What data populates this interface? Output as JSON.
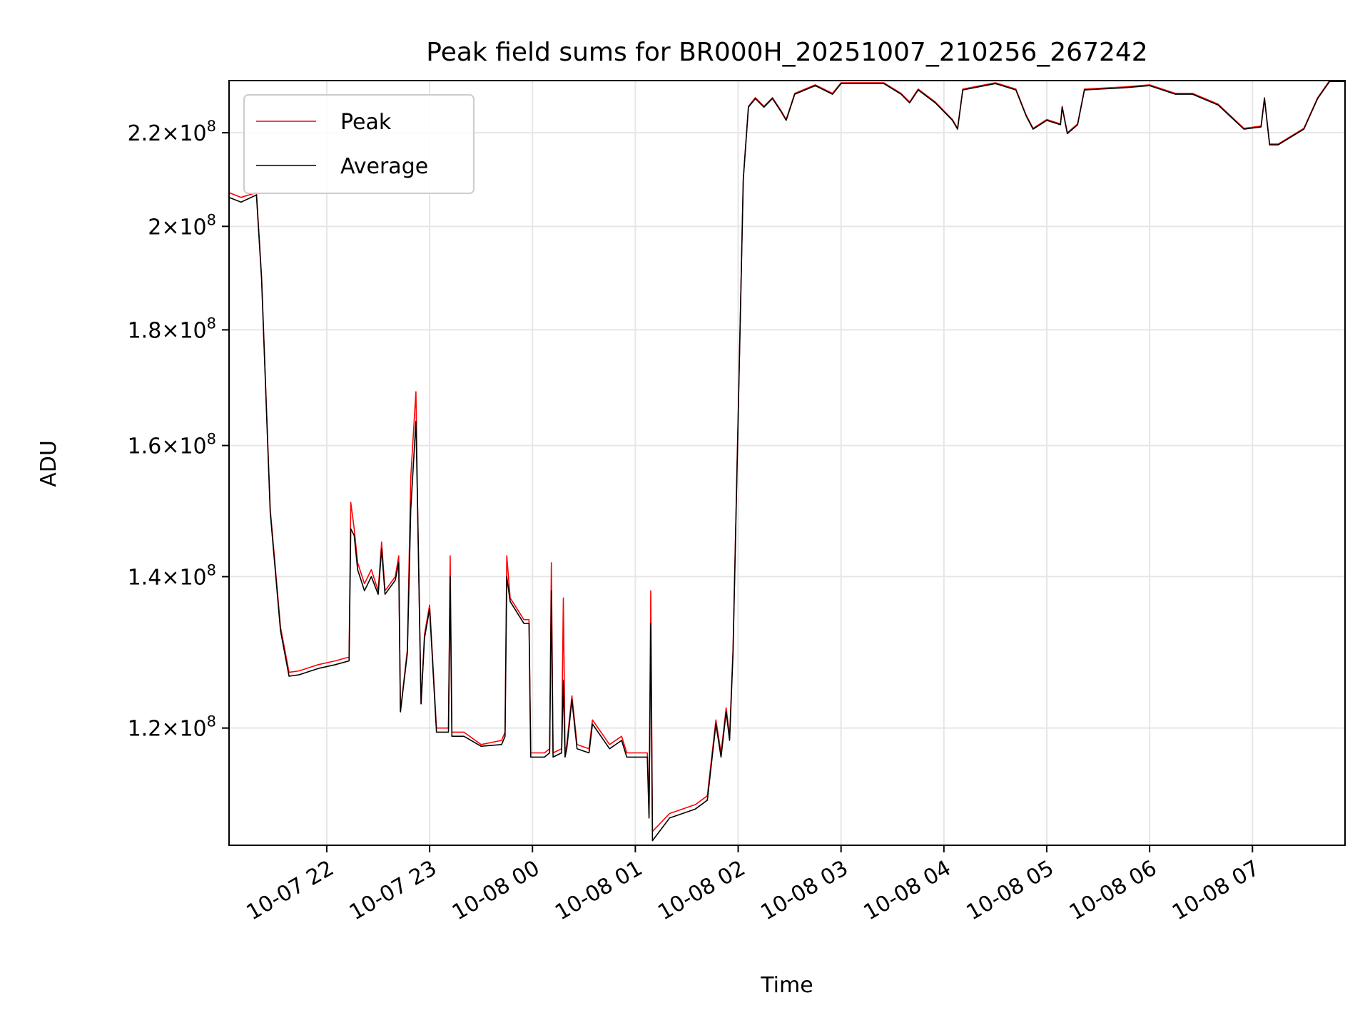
{
  "chart_data": {
    "type": "line",
    "title": "Peak field sums for BR000H_20251007_210256_267242",
    "xlabel": "Time",
    "ylabel": "ADU",
    "yscale": "log",
    "grid": true,
    "legend_position": "upper-left",
    "xlim": [
      "2025-10-07 21:03",
      "2025-10-08 07:54"
    ],
    "ylim": [
      106500000,
      232000000
    ],
    "x_ticks": [
      {
        "value": "2025-10-07 22:00",
        "label": "10-07 22"
      },
      {
        "value": "2025-10-07 23:00",
        "label": "10-07 23"
      },
      {
        "value": "2025-10-08 00:00",
        "label": "10-08 00"
      },
      {
        "value": "2025-10-08 01:00",
        "label": "10-08 01"
      },
      {
        "value": "2025-10-08 02:00",
        "label": "10-08 02"
      },
      {
        "value": "2025-10-08 03:00",
        "label": "10-08 03"
      },
      {
        "value": "2025-10-08 04:00",
        "label": "10-08 04"
      },
      {
        "value": "2025-10-08 05:00",
        "label": "10-08 05"
      },
      {
        "value": "2025-10-08 06:00",
        "label": "10-08 06"
      },
      {
        "value": "2025-10-08 07:00",
        "label": "10-08 07"
      }
    ],
    "y_ticks": [
      {
        "value": 120000000,
        "mantissa": "1.2",
        "exponent": "8"
      },
      {
        "value": 140000000,
        "mantissa": "1.4",
        "exponent": "8"
      },
      {
        "value": 160000000,
        "mantissa": "1.6",
        "exponent": "8"
      },
      {
        "value": 180000000,
        "mantissa": "1.8",
        "exponent": "8"
      },
      {
        "value": 200000000,
        "mantissa": "2",
        "exponent": "8"
      },
      {
        "value": 220000000,
        "mantissa": "2.2",
        "exponent": "8"
      }
    ],
    "tick_multiplier": "×10",
    "series": [
      {
        "name": "Peak",
        "color": "#ff0000",
        "points": [
          [
            "2025-10-07 21:03",
            207000000
          ],
          [
            "2025-10-07 21:10",
            206000000
          ],
          [
            "2025-10-07 21:19",
            207000000
          ],
          [
            "2025-10-07 21:22",
            190000000
          ],
          [
            "2025-10-07 21:27",
            150000000
          ],
          [
            "2025-10-07 21:33",
            133000000
          ],
          [
            "2025-10-07 21:38",
            127000000
          ],
          [
            "2025-10-07 21:44",
            127200000
          ],
          [
            "2025-10-07 21:55",
            128000000
          ],
          [
            "2025-10-07 22:05",
            128500000
          ],
          [
            "2025-10-07 22:13",
            129000000
          ],
          [
            "2025-10-07 22:14",
            151000000
          ],
          [
            "2025-10-07 22:16",
            147000000
          ],
          [
            "2025-10-07 22:18",
            142000000
          ],
          [
            "2025-10-07 22:22",
            139000000
          ],
          [
            "2025-10-07 22:26",
            141000000
          ],
          [
            "2025-10-07 22:30",
            138000000
          ],
          [
            "2025-10-07 22:32",
            145000000
          ],
          [
            "2025-10-07 22:34",
            138000000
          ],
          [
            "2025-10-07 22:40",
            140000000
          ],
          [
            "2025-10-07 22:42",
            143000000
          ],
          [
            "2025-10-07 22:43",
            122000000
          ],
          [
            "2025-10-07 22:47",
            130000000
          ],
          [
            "2025-10-07 22:49",
            155000000
          ],
          [
            "2025-10-07 22:52",
            169000000
          ],
          [
            "2025-10-07 22:53",
            150000000
          ],
          [
            "2025-10-07 22:55",
            123000000
          ],
          [
            "2025-10-07 22:57",
            132000000
          ],
          [
            "2025-10-07 23:00",
            136000000
          ],
          [
            "2025-10-07 23:04",
            120000000
          ],
          [
            "2025-10-07 23:11",
            120000000
          ],
          [
            "2025-10-07 23:12",
            143000000
          ],
          [
            "2025-10-07 23:13",
            119500000
          ],
          [
            "2025-10-07 23:20",
            119500000
          ],
          [
            "2025-10-07 23:30",
            118000000
          ],
          [
            "2025-10-07 23:42",
            118500000
          ],
          [
            "2025-10-07 23:44",
            119500000
          ],
          [
            "2025-10-07 23:45",
            143000000
          ],
          [
            "2025-10-07 23:47",
            137000000
          ],
          [
            "2025-10-07 23:55",
            134000000
          ],
          [
            "2025-10-07 23:58",
            134000000
          ],
          [
            "2025-10-07 23:59",
            117000000
          ],
          [
            "2025-10-08 00:07",
            117000000
          ],
          [
            "2025-10-08 00:10",
            117500000
          ],
          [
            "2025-10-08 00:11",
            142000000
          ],
          [
            "2025-10-08 00:12",
            117000000
          ],
          [
            "2025-10-08 00:17",
            117500000
          ],
          [
            "2025-10-08 00:18",
            137000000
          ],
          [
            "2025-10-08 00:19",
            117000000
          ],
          [
            "2025-10-08 00:20",
            118000000
          ],
          [
            "2025-10-08 00:23",
            124000000
          ],
          [
            "2025-10-08 00:26",
            118000000
          ],
          [
            "2025-10-08 00:33",
            117500000
          ],
          [
            "2025-10-08 00:35",
            121000000
          ],
          [
            "2025-10-08 00:45",
            118000000
          ],
          [
            "2025-10-08 00:52",
            119000000
          ],
          [
            "2025-10-08 00:55",
            117000000
          ],
          [
            "2025-10-08 01:07",
            117000000
          ],
          [
            "2025-10-08 01:08",
            110000000
          ],
          [
            "2025-10-08 01:09",
            138000000
          ],
          [
            "2025-10-08 01:10",
            108000000
          ],
          [
            "2025-10-08 01:20",
            110000000
          ],
          [
            "2025-10-08 01:35",
            111000000
          ],
          [
            "2025-10-08 01:42",
            112000000
          ],
          [
            "2025-10-08 01:47",
            121000000
          ],
          [
            "2025-10-08 01:50",
            117000000
          ],
          [
            "2025-10-08 01:53",
            122500000
          ],
          [
            "2025-10-08 01:55",
            119000000
          ],
          [
            "2025-10-08 01:57",
            130000000
          ],
          [
            "2025-10-08 02:00",
            165000000
          ],
          [
            "2025-10-08 02:03",
            210000000
          ],
          [
            "2025-10-08 02:06",
            226000000
          ],
          [
            "2025-10-08 02:10",
            228000000
          ],
          [
            "2025-10-08 02:15",
            226000000
          ],
          [
            "2025-10-08 02:20",
            228000000
          ],
          [
            "2025-10-08 02:25",
            225000000
          ],
          [
            "2025-10-08 02:28",
            223000000
          ],
          [
            "2025-10-08 02:33",
            229000000
          ],
          [
            "2025-10-08 02:45",
            231000000
          ],
          [
            "2025-10-08 02:55",
            229000000
          ],
          [
            "2025-10-08 03:00",
            231500000
          ],
          [
            "2025-10-08 03:25",
            231500000
          ],
          [
            "2025-10-08 03:35",
            229000000
          ],
          [
            "2025-10-08 03:40",
            227000000
          ],
          [
            "2025-10-08 03:45",
            230000000
          ],
          [
            "2025-10-08 03:55",
            227000000
          ],
          [
            "2025-10-08 04:05",
            223000000
          ],
          [
            "2025-10-08 04:08",
            221000000
          ],
          [
            "2025-10-08 04:11",
            230000000
          ],
          [
            "2025-10-08 04:30",
            231500000
          ],
          [
            "2025-10-08 04:42",
            230000000
          ],
          [
            "2025-10-08 04:48",
            224000000
          ],
          [
            "2025-10-08 04:52",
            221000000
          ],
          [
            "2025-10-08 05:00",
            223000000
          ],
          [
            "2025-10-08 05:08",
            222000000
          ],
          [
            "2025-10-08 05:09",
            226000000
          ],
          [
            "2025-10-08 05:12",
            220000000
          ],
          [
            "2025-10-08 05:18",
            222000000
          ],
          [
            "2025-10-08 05:22",
            230000000
          ],
          [
            "2025-10-08 05:45",
            230500000
          ],
          [
            "2025-10-08 06:00",
            231000000
          ],
          [
            "2025-10-08 06:15",
            229000000
          ],
          [
            "2025-10-08 06:25",
            229000000
          ],
          [
            "2025-10-08 06:40",
            226500000
          ],
          [
            "2025-10-08 06:55",
            221000000
          ],
          [
            "2025-10-08 07:05",
            221500000
          ],
          [
            "2025-10-08 07:07",
            228000000
          ],
          [
            "2025-10-08 07:10",
            217500000
          ],
          [
            "2025-10-08 07:15",
            217500000
          ],
          [
            "2025-10-08 07:30",
            221000000
          ],
          [
            "2025-10-08 07:38",
            228000000
          ],
          [
            "2025-10-08 07:45",
            232000000
          ],
          [
            "2025-10-08 07:54",
            232000000
          ]
        ]
      },
      {
        "name": "Average",
        "color": "#000000",
        "points": [
          [
            "2025-10-07 21:03",
            206000000
          ],
          [
            "2025-10-07 21:10",
            205000000
          ],
          [
            "2025-10-07 21:19",
            206500000
          ],
          [
            "2025-10-07 21:22",
            189500000
          ],
          [
            "2025-10-07 21:27",
            149500000
          ],
          [
            "2025-10-07 21:33",
            132500000
          ],
          [
            "2025-10-07 21:38",
            126500000
          ],
          [
            "2025-10-07 21:44",
            126700000
          ],
          [
            "2025-10-07 21:55",
            127500000
          ],
          [
            "2025-10-07 22:05",
            128000000
          ],
          [
            "2025-10-07 22:13",
            128500000
          ],
          [
            "2025-10-07 22:14",
            147000000
          ],
          [
            "2025-10-07 22:16",
            146000000
          ],
          [
            "2025-10-07 22:18",
            141000000
          ],
          [
            "2025-10-07 22:22",
            138000000
          ],
          [
            "2025-10-07 22:26",
            140000000
          ],
          [
            "2025-10-07 22:30",
            137500000
          ],
          [
            "2025-10-07 22:32",
            144000000
          ],
          [
            "2025-10-07 22:34",
            137500000
          ],
          [
            "2025-10-07 22:40",
            139500000
          ],
          [
            "2025-10-07 22:42",
            142000000
          ],
          [
            "2025-10-07 22:43",
            122000000
          ],
          [
            "2025-10-07 22:47",
            129500000
          ],
          [
            "2025-10-07 22:49",
            150000000
          ],
          [
            "2025-10-07 22:52",
            164000000
          ],
          [
            "2025-10-07 22:53",
            150000000
          ],
          [
            "2025-10-07 22:55",
            123000000
          ],
          [
            "2025-10-07 22:57",
            131500000
          ],
          [
            "2025-10-07 23:00",
            135500000
          ],
          [
            "2025-10-07 23:04",
            119500000
          ],
          [
            "2025-10-07 23:11",
            119500000
          ],
          [
            "2025-10-07 23:12",
            140000000
          ],
          [
            "2025-10-07 23:13",
            119000000
          ],
          [
            "2025-10-07 23:20",
            119000000
          ],
          [
            "2025-10-07 23:30",
            117800000
          ],
          [
            "2025-10-07 23:42",
            118000000
          ],
          [
            "2025-10-07 23:44",
            119000000
          ],
          [
            "2025-10-07 23:45",
            140000000
          ],
          [
            "2025-10-07 23:47",
            136500000
          ],
          [
            "2025-10-07 23:55",
            133500000
          ],
          [
            "2025-10-07 23:58",
            133500000
          ],
          [
            "2025-10-07 23:59",
            116500000
          ],
          [
            "2025-10-08 00:07",
            116500000
          ],
          [
            "2025-10-08 00:10",
            117000000
          ],
          [
            "2025-10-08 00:11",
            138000000
          ],
          [
            "2025-10-08 00:12",
            116500000
          ],
          [
            "2025-10-08 00:17",
            117000000
          ],
          [
            "2025-10-08 00:18",
            126000000
          ],
          [
            "2025-10-08 00:19",
            116500000
          ],
          [
            "2025-10-08 00:20",
            117500000
          ],
          [
            "2025-10-08 00:23",
            123500000
          ],
          [
            "2025-10-08 00:26",
            117500000
          ],
          [
            "2025-10-08 00:33",
            117000000
          ],
          [
            "2025-10-08 00:35",
            120500000
          ],
          [
            "2025-10-08 00:45",
            117500000
          ],
          [
            "2025-10-08 00:52",
            118500000
          ],
          [
            "2025-10-08 00:55",
            116500000
          ],
          [
            "2025-10-08 01:07",
            116500000
          ],
          [
            "2025-10-08 01:08",
            109500000
          ],
          [
            "2025-10-08 01:09",
            133500000
          ],
          [
            "2025-10-08 01:10",
            107000000
          ],
          [
            "2025-10-08 01:20",
            109500000
          ],
          [
            "2025-10-08 01:35",
            110500000
          ],
          [
            "2025-10-08 01:42",
            111500000
          ],
          [
            "2025-10-08 01:47",
            120500000
          ],
          [
            "2025-10-08 01:50",
            116500000
          ],
          [
            "2025-10-08 01:53",
            122000000
          ],
          [
            "2025-10-08 01:55",
            118500000
          ],
          [
            "2025-10-08 01:57",
            129500000
          ],
          [
            "2025-10-08 02:00",
            164500000
          ],
          [
            "2025-10-08 02:03",
            209800000
          ],
          [
            "2025-10-08 02:06",
            225800000
          ],
          [
            "2025-10-08 02:10",
            227800000
          ],
          [
            "2025-10-08 02:15",
            225800000
          ],
          [
            "2025-10-08 02:20",
            227800000
          ],
          [
            "2025-10-08 02:25",
            224800000
          ],
          [
            "2025-10-08 02:28",
            222800000
          ],
          [
            "2025-10-08 02:33",
            228800000
          ],
          [
            "2025-10-08 02:45",
            230800000
          ],
          [
            "2025-10-08 02:55",
            228800000
          ],
          [
            "2025-10-08 03:00",
            231300000
          ],
          [
            "2025-10-08 03:25",
            231300000
          ],
          [
            "2025-10-08 03:35",
            228800000
          ],
          [
            "2025-10-08 03:40",
            226800000
          ],
          [
            "2025-10-08 03:45",
            229800000
          ],
          [
            "2025-10-08 03:55",
            226800000
          ],
          [
            "2025-10-08 04:05",
            222800000
          ],
          [
            "2025-10-08 04:08",
            220800000
          ],
          [
            "2025-10-08 04:11",
            229800000
          ],
          [
            "2025-10-08 04:30",
            231300000
          ],
          [
            "2025-10-08 04:42",
            229800000
          ],
          [
            "2025-10-08 04:48",
            223800000
          ],
          [
            "2025-10-08 04:52",
            220800000
          ],
          [
            "2025-10-08 05:00",
            222800000
          ],
          [
            "2025-10-08 05:08",
            221800000
          ],
          [
            "2025-10-08 05:09",
            225800000
          ],
          [
            "2025-10-08 05:12",
            219800000
          ],
          [
            "2025-10-08 05:18",
            221800000
          ],
          [
            "2025-10-08 05:22",
            229800000
          ],
          [
            "2025-10-08 05:45",
            230300000
          ],
          [
            "2025-10-08 06:00",
            230800000
          ],
          [
            "2025-10-08 06:15",
            228800000
          ],
          [
            "2025-10-08 06:25",
            228800000
          ],
          [
            "2025-10-08 06:40",
            226300000
          ],
          [
            "2025-10-08 06:55",
            220800000
          ],
          [
            "2025-10-08 07:05",
            221300000
          ],
          [
            "2025-10-08 07:07",
            227800000
          ],
          [
            "2025-10-08 07:10",
            217300000
          ],
          [
            "2025-10-08 07:15",
            217300000
          ],
          [
            "2025-10-08 07:30",
            220800000
          ],
          [
            "2025-10-08 07:38",
            227800000
          ],
          [
            "2025-10-08 07:45",
            231800000
          ],
          [
            "2025-10-08 07:54",
            231800000
          ]
        ]
      }
    ]
  }
}
